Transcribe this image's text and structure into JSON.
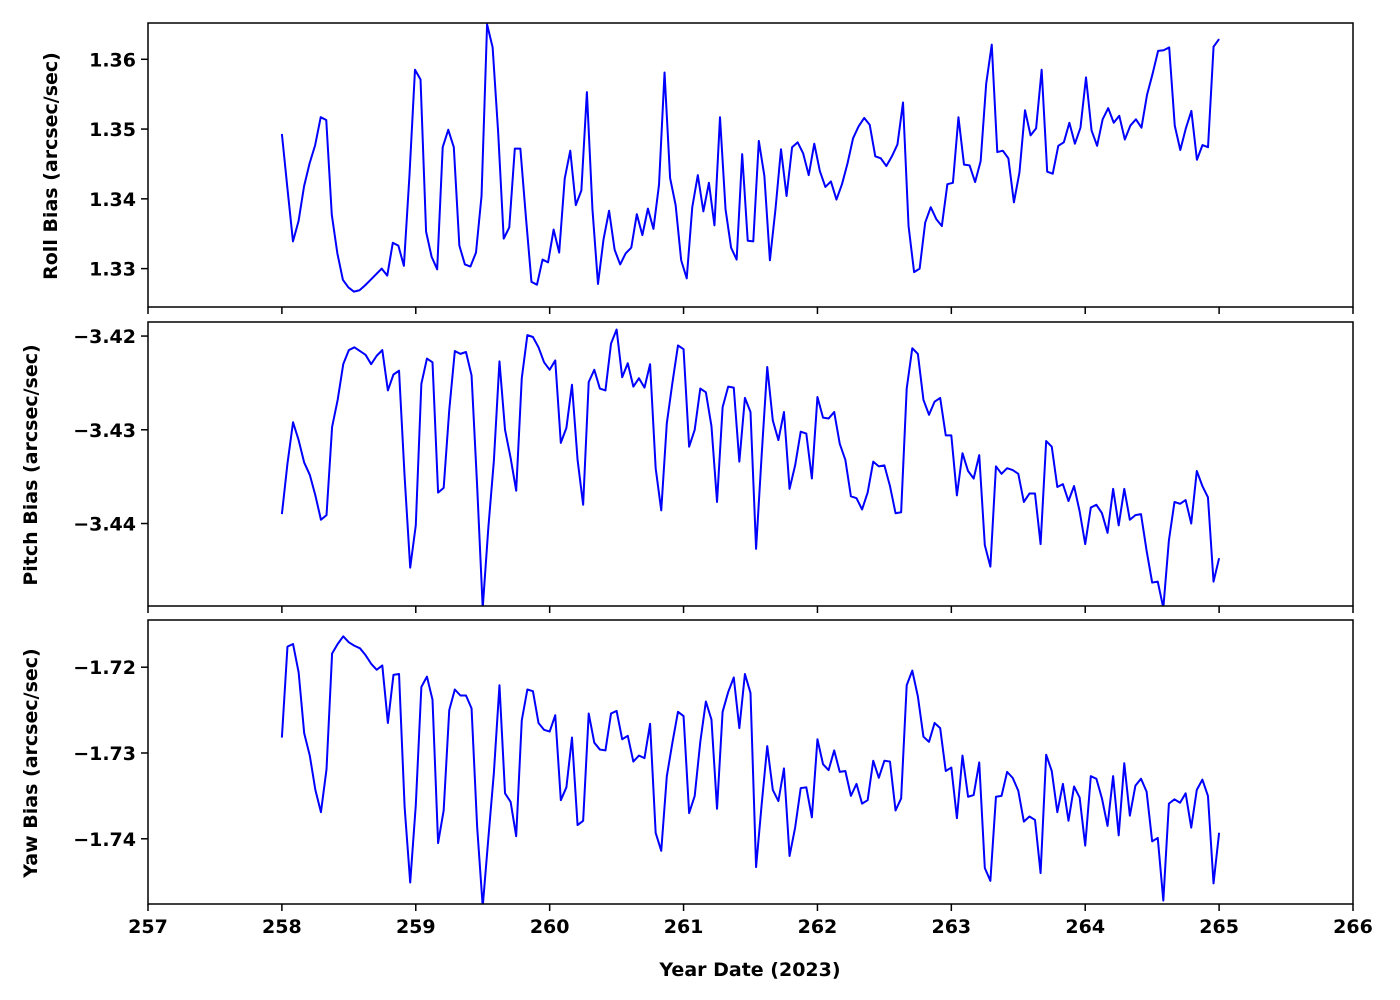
{
  "chart_data": {
    "type": "line",
    "xlabel": "Year Date (2023)",
    "xlim": [
      257,
      266
    ],
    "xticks": [
      257,
      258,
      259,
      260,
      261,
      262,
      263,
      264,
      265,
      266
    ],
    "line_color": "#0000ff",
    "grid": false,
    "panels": [
      {
        "ylabel": "Roll Bias (arcsec/sec)",
        "ylim": [
          1.3245,
          1.3652
        ],
        "yticks": [
          1.33,
          1.34,
          1.35,
          1.36
        ],
        "ytick_labels": [
          "1.33",
          "1.34",
          "1.35",
          "1.36"
        ],
        "y": [
          1.3493,
          1.3415,
          1.3339,
          1.3368,
          1.3418,
          1.3451,
          1.3477,
          1.3517,
          1.3513,
          1.3377,
          1.3322,
          1.3284,
          1.3273,
          1.3267,
          1.3269,
          1.3276,
          1.3284,
          1.3292,
          1.33,
          1.329,
          1.3337,
          1.3333,
          1.3304,
          1.3433,
          1.3585,
          1.3571,
          1.3353,
          1.3317,
          1.3299,
          1.3474,
          1.3499,
          1.3474,
          1.3333,
          1.3306,
          1.3303,
          1.3323,
          1.3404,
          1.365,
          1.3617,
          1.3495,
          1.3343,
          1.3359,
          1.3472,
          1.3472,
          1.3374,
          1.3281,
          1.3277,
          1.3313,
          1.3309,
          1.3356,
          1.3323,
          1.3429,
          1.3469,
          1.3391,
          1.3412,
          1.3553,
          1.3385,
          1.3278,
          1.3342,
          1.3383,
          1.3327,
          1.3306,
          1.3322,
          1.333,
          1.3378,
          1.3348,
          1.3386,
          1.3357,
          1.342,
          1.3581,
          1.343,
          1.3391,
          1.3312,
          1.3286,
          1.3388,
          1.3434,
          1.3382,
          1.3423,
          1.3362,
          1.3517,
          1.3385,
          1.333,
          1.3313,
          1.3464,
          1.334,
          1.3339,
          1.3483,
          1.3433,
          1.3312,
          1.3385,
          1.3471,
          1.3404,
          1.3474,
          1.3481,
          1.3465,
          1.3434,
          1.3479,
          1.344,
          1.3417,
          1.3425,
          1.3399,
          1.3421,
          1.3451,
          1.3487,
          1.3504,
          1.3516,
          1.3506,
          1.3461,
          1.3458,
          1.3447,
          1.3461,
          1.3478,
          1.3538,
          1.3361,
          1.3295,
          1.33,
          1.3366,
          1.3388,
          1.3371,
          1.3361,
          1.3421,
          1.3423,
          1.3517,
          1.3449,
          1.3448,
          1.3424,
          1.3454,
          1.3565,
          1.3621,
          1.3467,
          1.3469,
          1.3458,
          1.3395,
          1.3438,
          1.3527,
          1.3491,
          1.3501,
          1.3585,
          1.3439,
          1.3436,
          1.3476,
          1.3481,
          1.3509,
          1.3479,
          1.3502,
          1.3574,
          1.3498,
          1.3476,
          1.3514,
          1.353,
          1.3509,
          1.3519,
          1.3485,
          1.3505,
          1.3514,
          1.3502,
          1.3549,
          1.3579,
          1.3612,
          1.3613,
          1.3617,
          1.3505,
          1.347,
          1.3501,
          1.3526,
          1.3456,
          1.3477,
          1.3474,
          1.3618,
          1.3629
        ]
      },
      {
        "ylabel": "Pitch Bias (arcsec/sec)",
        "ylim": [
          -3.4488,
          -3.4185
        ],
        "yticks": [
          -3.42,
          -3.43,
          -3.44
        ],
        "ytick_labels": [
          "−3.42",
          "−3.43",
          "−3.44"
        ],
        "y": [
          -3.439,
          -3.4336,
          -3.4292,
          -3.4311,
          -3.4335,
          -3.4348,
          -3.437,
          -3.4396,
          -3.4391,
          -3.4297,
          -3.4268,
          -3.423,
          -3.4215,
          -3.4212,
          -3.4216,
          -3.422,
          -3.423,
          -3.4221,
          -3.4215,
          -3.4258,
          -3.4241,
          -3.4237,
          -3.435,
          -3.4447,
          -3.4402,
          -3.4251,
          -3.4224,
          -3.4228,
          -3.4367,
          -3.4362,
          -3.4279,
          -3.4216,
          -3.4219,
          -3.4217,
          -3.4242,
          -3.436,
          -3.449,
          -3.4405,
          -3.4333,
          -3.4227,
          -3.43,
          -3.433,
          -3.4365,
          -3.4245,
          -3.4199,
          -3.4201,
          -3.4212,
          -3.4228,
          -3.4236,
          -3.4226,
          -3.4314,
          -3.4298,
          -3.4252,
          -3.4332,
          -3.438,
          -3.4249,
          -3.4236,
          -3.4256,
          -3.4258,
          -3.4208,
          -3.4193,
          -3.4244,
          -3.4229,
          -3.4254,
          -3.4245,
          -3.4255,
          -3.423,
          -3.4341,
          -3.4386,
          -3.4293,
          -3.425,
          -3.421,
          -3.4214,
          -3.4318,
          -3.43,
          -3.4256,
          -3.426,
          -3.4296,
          -3.4377,
          -3.4276,
          -3.4254,
          -3.4255,
          -3.4334,
          -3.4266,
          -3.4281,
          -3.4427,
          -3.4327,
          -3.4233,
          -3.429,
          -3.4311,
          -3.4281,
          -3.4363,
          -3.4338,
          -3.4302,
          -3.4304,
          -3.4352,
          -3.4265,
          -3.4287,
          -3.4288,
          -3.4281,
          -3.4315,
          -3.4332,
          -3.4371,
          -3.4373,
          -3.4385,
          -3.4367,
          -3.4334,
          -3.4339,
          -3.4338,
          -3.436,
          -3.4389,
          -3.4388,
          -3.4256,
          -3.4213,
          -3.4219,
          -3.4268,
          -3.4284,
          -3.427,
          -3.4266,
          -3.4306,
          -3.4306,
          -3.437,
          -3.4325,
          -3.4344,
          -3.4352,
          -3.4327,
          -3.4423,
          -3.4446,
          -3.4339,
          -3.4347,
          -3.4341,
          -3.4343,
          -3.4347,
          -3.4377,
          -3.4368,
          -3.4368,
          -3.4422,
          -3.4312,
          -3.4318,
          -3.4361,
          -3.4358,
          -3.4376,
          -3.436,
          -3.4387,
          -3.4422,
          -3.4383,
          -3.438,
          -3.4389,
          -3.441,
          -3.4363,
          -3.4402,
          -3.4363,
          -3.4396,
          -3.4391,
          -3.439,
          -3.4429,
          -3.4463,
          -3.4462,
          -3.449,
          -3.4418,
          -3.4377,
          -3.4379,
          -3.4375,
          -3.44,
          -3.4344,
          -3.436,
          -3.4372,
          -3.4462,
          -3.4437
        ]
      },
      {
        "ylabel": "Yaw Bias (arcsec/sec)",
        "ylim": [
          -1.7476,
          -1.7145
        ],
        "yticks": [
          -1.72,
          -1.73,
          -1.74
        ],
        "ytick_labels": [
          "−1.72",
          "−1.73",
          "−1.74"
        ],
        "y": [
          -1.7282,
          -1.7176,
          -1.7173,
          -1.7206,
          -1.7277,
          -1.7303,
          -1.7343,
          -1.7369,
          -1.7319,
          -1.7184,
          -1.7173,
          -1.7164,
          -1.7171,
          -1.7175,
          -1.7178,
          -1.7186,
          -1.7196,
          -1.7203,
          -1.7198,
          -1.7265,
          -1.7209,
          -1.7208,
          -1.7363,
          -1.7451,
          -1.7361,
          -1.7223,
          -1.7211,
          -1.7238,
          -1.7405,
          -1.7367,
          -1.725,
          -1.7226,
          -1.7233,
          -1.7233,
          -1.7248,
          -1.7386,
          -1.7479,
          -1.74,
          -1.7323,
          -1.7221,
          -1.7347,
          -1.7357,
          -1.7397,
          -1.7262,
          -1.7226,
          -1.7228,
          -1.7265,
          -1.7273,
          -1.7275,
          -1.7256,
          -1.7355,
          -1.734,
          -1.7282,
          -1.7384,
          -1.7379,
          -1.7254,
          -1.7288,
          -1.7296,
          -1.7297,
          -1.7254,
          -1.7251,
          -1.7284,
          -1.728,
          -1.731,
          -1.7303,
          -1.7306,
          -1.7266,
          -1.7393,
          -1.7414,
          -1.7327,
          -1.7288,
          -1.7252,
          -1.7257,
          -1.737,
          -1.735,
          -1.7287,
          -1.724,
          -1.7261,
          -1.7365,
          -1.7252,
          -1.7229,
          -1.7212,
          -1.7271,
          -1.7208,
          -1.723,
          -1.7433,
          -1.736,
          -1.7292,
          -1.7343,
          -1.7356,
          -1.7318,
          -1.742,
          -1.7387,
          -1.7341,
          -1.734,
          -1.7375,
          -1.7284,
          -1.7313,
          -1.732,
          -1.7297,
          -1.7322,
          -1.7321,
          -1.735,
          -1.7336,
          -1.7359,
          -1.7355,
          -1.7309,
          -1.7329,
          -1.7309,
          -1.731,
          -1.7367,
          -1.7353,
          -1.7221,
          -1.7204,
          -1.7234,
          -1.7281,
          -1.7287,
          -1.7265,
          -1.7271,
          -1.7321,
          -1.7317,
          -1.7376,
          -1.7303,
          -1.7351,
          -1.7349,
          -1.7311,
          -1.7434,
          -1.7449,
          -1.7351,
          -1.735,
          -1.7322,
          -1.7329,
          -1.7344,
          -1.738,
          -1.7374,
          -1.7378,
          -1.744,
          -1.7302,
          -1.7321,
          -1.7369,
          -1.7336,
          -1.7379,
          -1.7339,
          -1.7352,
          -1.7408,
          -1.7327,
          -1.733,
          -1.7353,
          -1.7385,
          -1.7327,
          -1.7396,
          -1.7312,
          -1.7373,
          -1.7338,
          -1.733,
          -1.7345,
          -1.7403,
          -1.7399,
          -1.7472,
          -1.7359,
          -1.7354,
          -1.7358,
          -1.7347,
          -1.7387,
          -1.7343,
          -1.7331,
          -1.735,
          -1.7452,
          -1.7393
        ]
      }
    ]
  }
}
